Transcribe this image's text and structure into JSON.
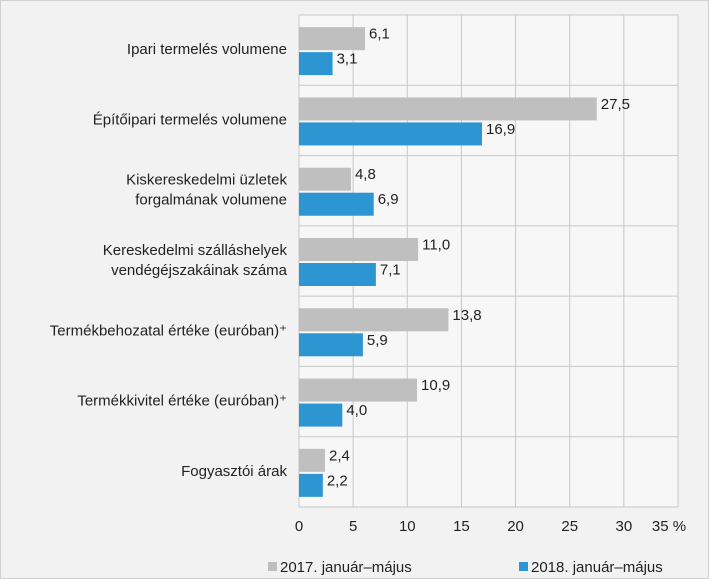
{
  "chart_data": {
    "type": "barh",
    "categories": [
      [
        "Ipari termelés volumene"
      ],
      [
        "Építőipari termelés volumene"
      ],
      [
        "Kiskereskedelmi üzletek",
        "forgalmának volumene"
      ],
      [
        "Kereskedelmi szálláshelyek",
        "vendégéjszakáinak száma"
      ],
      [
        "Termékbehozatal értéke (euróban)⁺"
      ],
      [
        "Termékkivitel értéke (euróban)⁺"
      ],
      [
        "Fogyasztói árak"
      ]
    ],
    "series": [
      {
        "name": "2017. január–május",
        "color": "#bfbfbf",
        "values": [
          6.1,
          27.5,
          4.8,
          11.0,
          13.8,
          10.9,
          2.4
        ],
        "value_labels": [
          "6,1",
          "27,5",
          "4,8",
          "11,0",
          "13,8",
          "10,9",
          "2,4"
        ]
      },
      {
        "name": "2018. január–május",
        "color": "#2e95d3",
        "values": [
          3.1,
          16.9,
          6.9,
          7.1,
          5.9,
          4.0,
          2.2
        ],
        "value_labels": [
          "3,1",
          "16,9",
          "6,9",
          "7,1",
          "5,9",
          "4,0",
          "2,2"
        ]
      }
    ],
    "xlim": [
      0,
      35
    ],
    "xticks": [
      0,
      5,
      10,
      15,
      20,
      25,
      30,
      {
        "value": 35,
        "label": "35 %"
      }
    ],
    "grid": true
  }
}
